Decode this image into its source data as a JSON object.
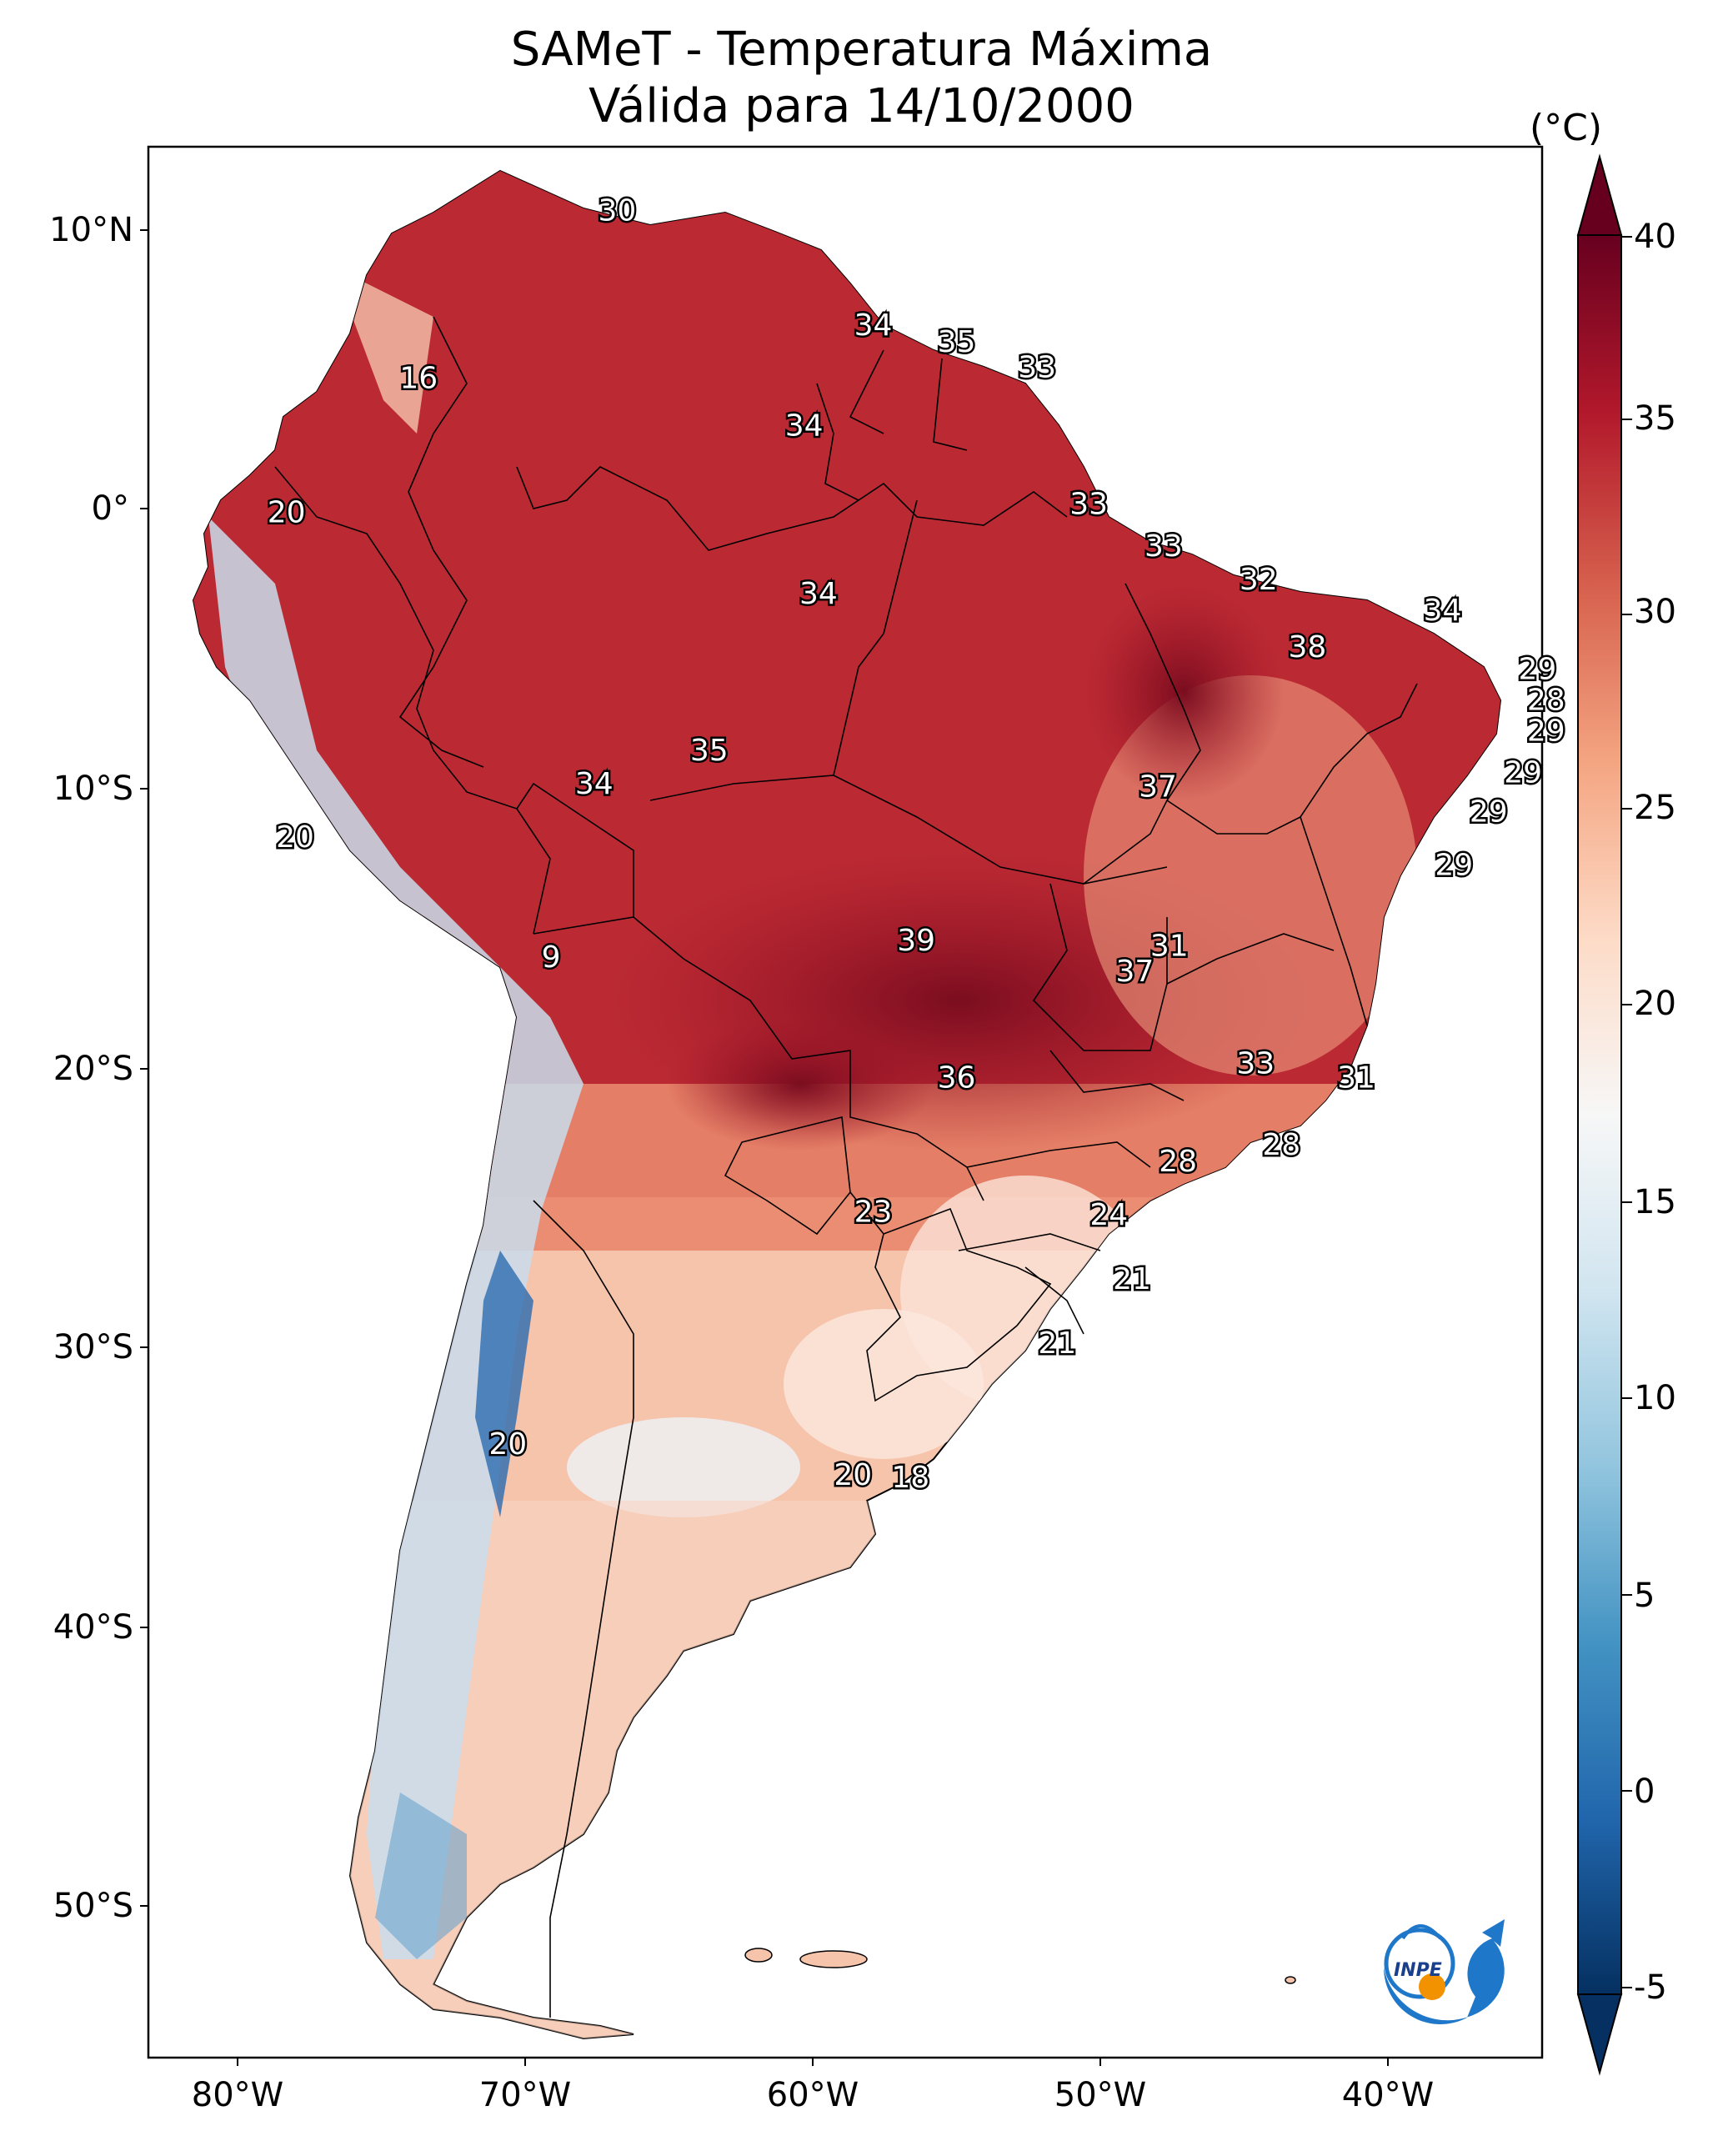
{
  "title": {
    "line1": "SAMeT - Temperatura Máxima",
    "line2": "Válida para 14/10/2000"
  },
  "colorbar": {
    "unit": "(°C)",
    "ticks": [
      "40",
      "35",
      "30",
      "25",
      "20",
      "15",
      "10",
      "5",
      "0",
      "-5"
    ],
    "colors": [
      "#053061",
      "#2166ac",
      "#4393c3",
      "#92c5de",
      "#d1e5f0",
      "#f7f7f7",
      "#fddbc7",
      "#f4a582",
      "#d6604d",
      "#b2182b",
      "#67001f"
    ]
  },
  "axes": {
    "lat_labels": [
      "10°N",
      "0°",
      "10°S",
      "20°S",
      "30°S",
      "40°S",
      "50°S"
    ],
    "lon_labels": [
      "80°W",
      "70°W",
      "60°W",
      "50°W",
      "40°W"
    ]
  },
  "map_labels": [
    {
      "lon": -66.8,
      "lat": 10.6,
      "text": "30"
    },
    {
      "lon": -57.9,
      "lat": 6.5,
      "text": "34"
    },
    {
      "lon": -55.0,
      "lat": 5.9,
      "text": "35"
    },
    {
      "lon": -52.2,
      "lat": 5.0,
      "text": "33"
    },
    {
      "lon": -73.7,
      "lat": 4.6,
      "text": "16"
    },
    {
      "lon": -60.3,
      "lat": 2.9,
      "text": "34"
    },
    {
      "lon": -78.3,
      "lat": -0.2,
      "text": "20"
    },
    {
      "lon": -50.4,
      "lat": 0.1,
      "text": "33"
    },
    {
      "lon": -47.8,
      "lat": -1.4,
      "text": "33"
    },
    {
      "lon": -44.5,
      "lat": -2.6,
      "text": "32"
    },
    {
      "lon": -59.8,
      "lat": -3.1,
      "text": "34"
    },
    {
      "lon": -38.1,
      "lat": -3.7,
      "text": "34"
    },
    {
      "lon": -42.8,
      "lat": -5.0,
      "text": "38"
    },
    {
      "lon": -34.8,
      "lat": -5.8,
      "text": "29"
    },
    {
      "lon": -34.5,
      "lat": -6.9,
      "text": "28"
    },
    {
      "lon": -34.5,
      "lat": -8.0,
      "text": "29"
    },
    {
      "lon": -63.6,
      "lat": -8.7,
      "text": "35"
    },
    {
      "lon": -35.3,
      "lat": -9.5,
      "text": "29"
    },
    {
      "lon": -67.6,
      "lat": -9.9,
      "text": "34"
    },
    {
      "lon": -48.0,
      "lat": -10.0,
      "text": "37"
    },
    {
      "lon": -36.5,
      "lat": -10.9,
      "text": "29"
    },
    {
      "lon": -78.0,
      "lat": -11.8,
      "text": "20"
    },
    {
      "lon": -37.7,
      "lat": -12.8,
      "text": "29"
    },
    {
      "lon": -69.1,
      "lat": -16.1,
      "text": "9"
    },
    {
      "lon": -56.4,
      "lat": -15.5,
      "text": "39"
    },
    {
      "lon": -47.6,
      "lat": -15.7,
      "text": "31"
    },
    {
      "lon": -48.8,
      "lat": -16.6,
      "text": "37"
    },
    {
      "lon": -44.6,
      "lat": -19.9,
      "text": "33"
    },
    {
      "lon": -41.1,
      "lat": -20.4,
      "text": "31"
    },
    {
      "lon": -55.0,
      "lat": -20.4,
      "text": "36"
    },
    {
      "lon": -43.7,
      "lat": -22.8,
      "text": "28"
    },
    {
      "lon": -47.3,
      "lat": -23.4,
      "text": "28"
    },
    {
      "lon": -57.9,
      "lat": -25.2,
      "text": "23"
    },
    {
      "lon": -49.7,
      "lat": -25.3,
      "text": "24"
    },
    {
      "lon": -48.9,
      "lat": -27.6,
      "text": "21"
    },
    {
      "lon": -51.5,
      "lat": -29.9,
      "text": "21"
    },
    {
      "lon": -70.6,
      "lat": -33.5,
      "text": "20"
    },
    {
      "lon": -58.6,
      "lat": -34.6,
      "text": "20"
    },
    {
      "lon": -56.6,
      "lat": -34.7,
      "text": "18"
    }
  ],
  "logo": {
    "text": "INPE"
  }
}
